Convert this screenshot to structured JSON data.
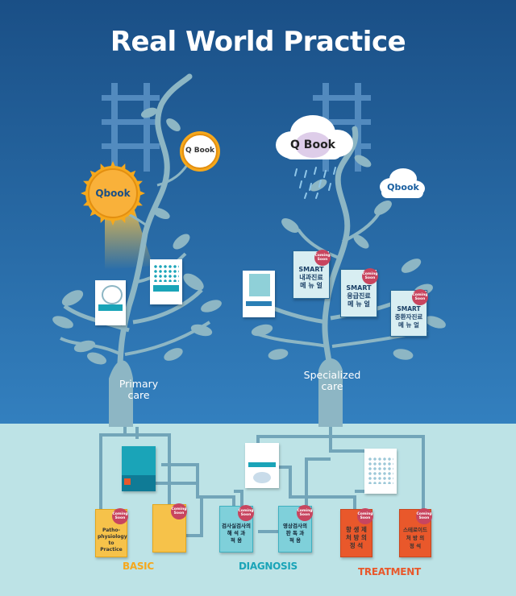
{
  "title": "Real World Practice",
  "trees": {
    "primary_label_1": "Primary",
    "primary_label_2": "care",
    "specialized_label_1": "Specialized",
    "specialized_label_2": "care"
  },
  "brands": {
    "sun_left": "Qbook",
    "sun_small": "Q Book",
    "cloud_large": "Q Book",
    "cloud_small": "Qbook"
  },
  "books_top": [
    {
      "line1": "SMART",
      "line2": "내과진료",
      "line3": "메 뉴 얼",
      "badge": "Coming Soon"
    },
    {
      "line1": "SMART",
      "line2": "응급진료",
      "line3": "메 뉴 얼",
      "badge": "Coming Soon"
    },
    {
      "line1": "SMART",
      "line2": "중환자진료",
      "line3": "메 뉴 얼",
      "badge": "Coming Soon"
    }
  ],
  "books_bottom": [
    {
      "text": "Patho-physiology to Practice",
      "badge": "Coming Soon"
    },
    {
      "badge": "Coming Soon"
    },
    {
      "line1": "검사실검사의",
      "line2": "해 석 과",
      "line3": "적 용",
      "badge": "Coming Soon"
    },
    {
      "line1": "영상검사의",
      "line2": "판 독 과",
      "line3": "적 용",
      "badge": "Coming Soon"
    },
    {
      "line1": "항 생 제",
      "line2": "처 방 의",
      "line3": "정 석",
      "badge": "Coming Soon"
    },
    {
      "line1": "스테로이드",
      "line2": "처 방 의",
      "line3": "정 석",
      "badge": "Coming Soon"
    }
  ],
  "sections": {
    "basic": "BASIC",
    "diagnosis": "DIAGNOSIS",
    "treatment": "TREATMENT"
  },
  "colors": {
    "sky_top": "#1a4f86",
    "sky_bottom": "#2f78b9",
    "ground": "#bde3e6",
    "tree": "#8db6c4",
    "basic": "#f6a81c",
    "diagnosis": "#1aa4b8",
    "treatment": "#e9582b",
    "badge": "#c8455f"
  }
}
